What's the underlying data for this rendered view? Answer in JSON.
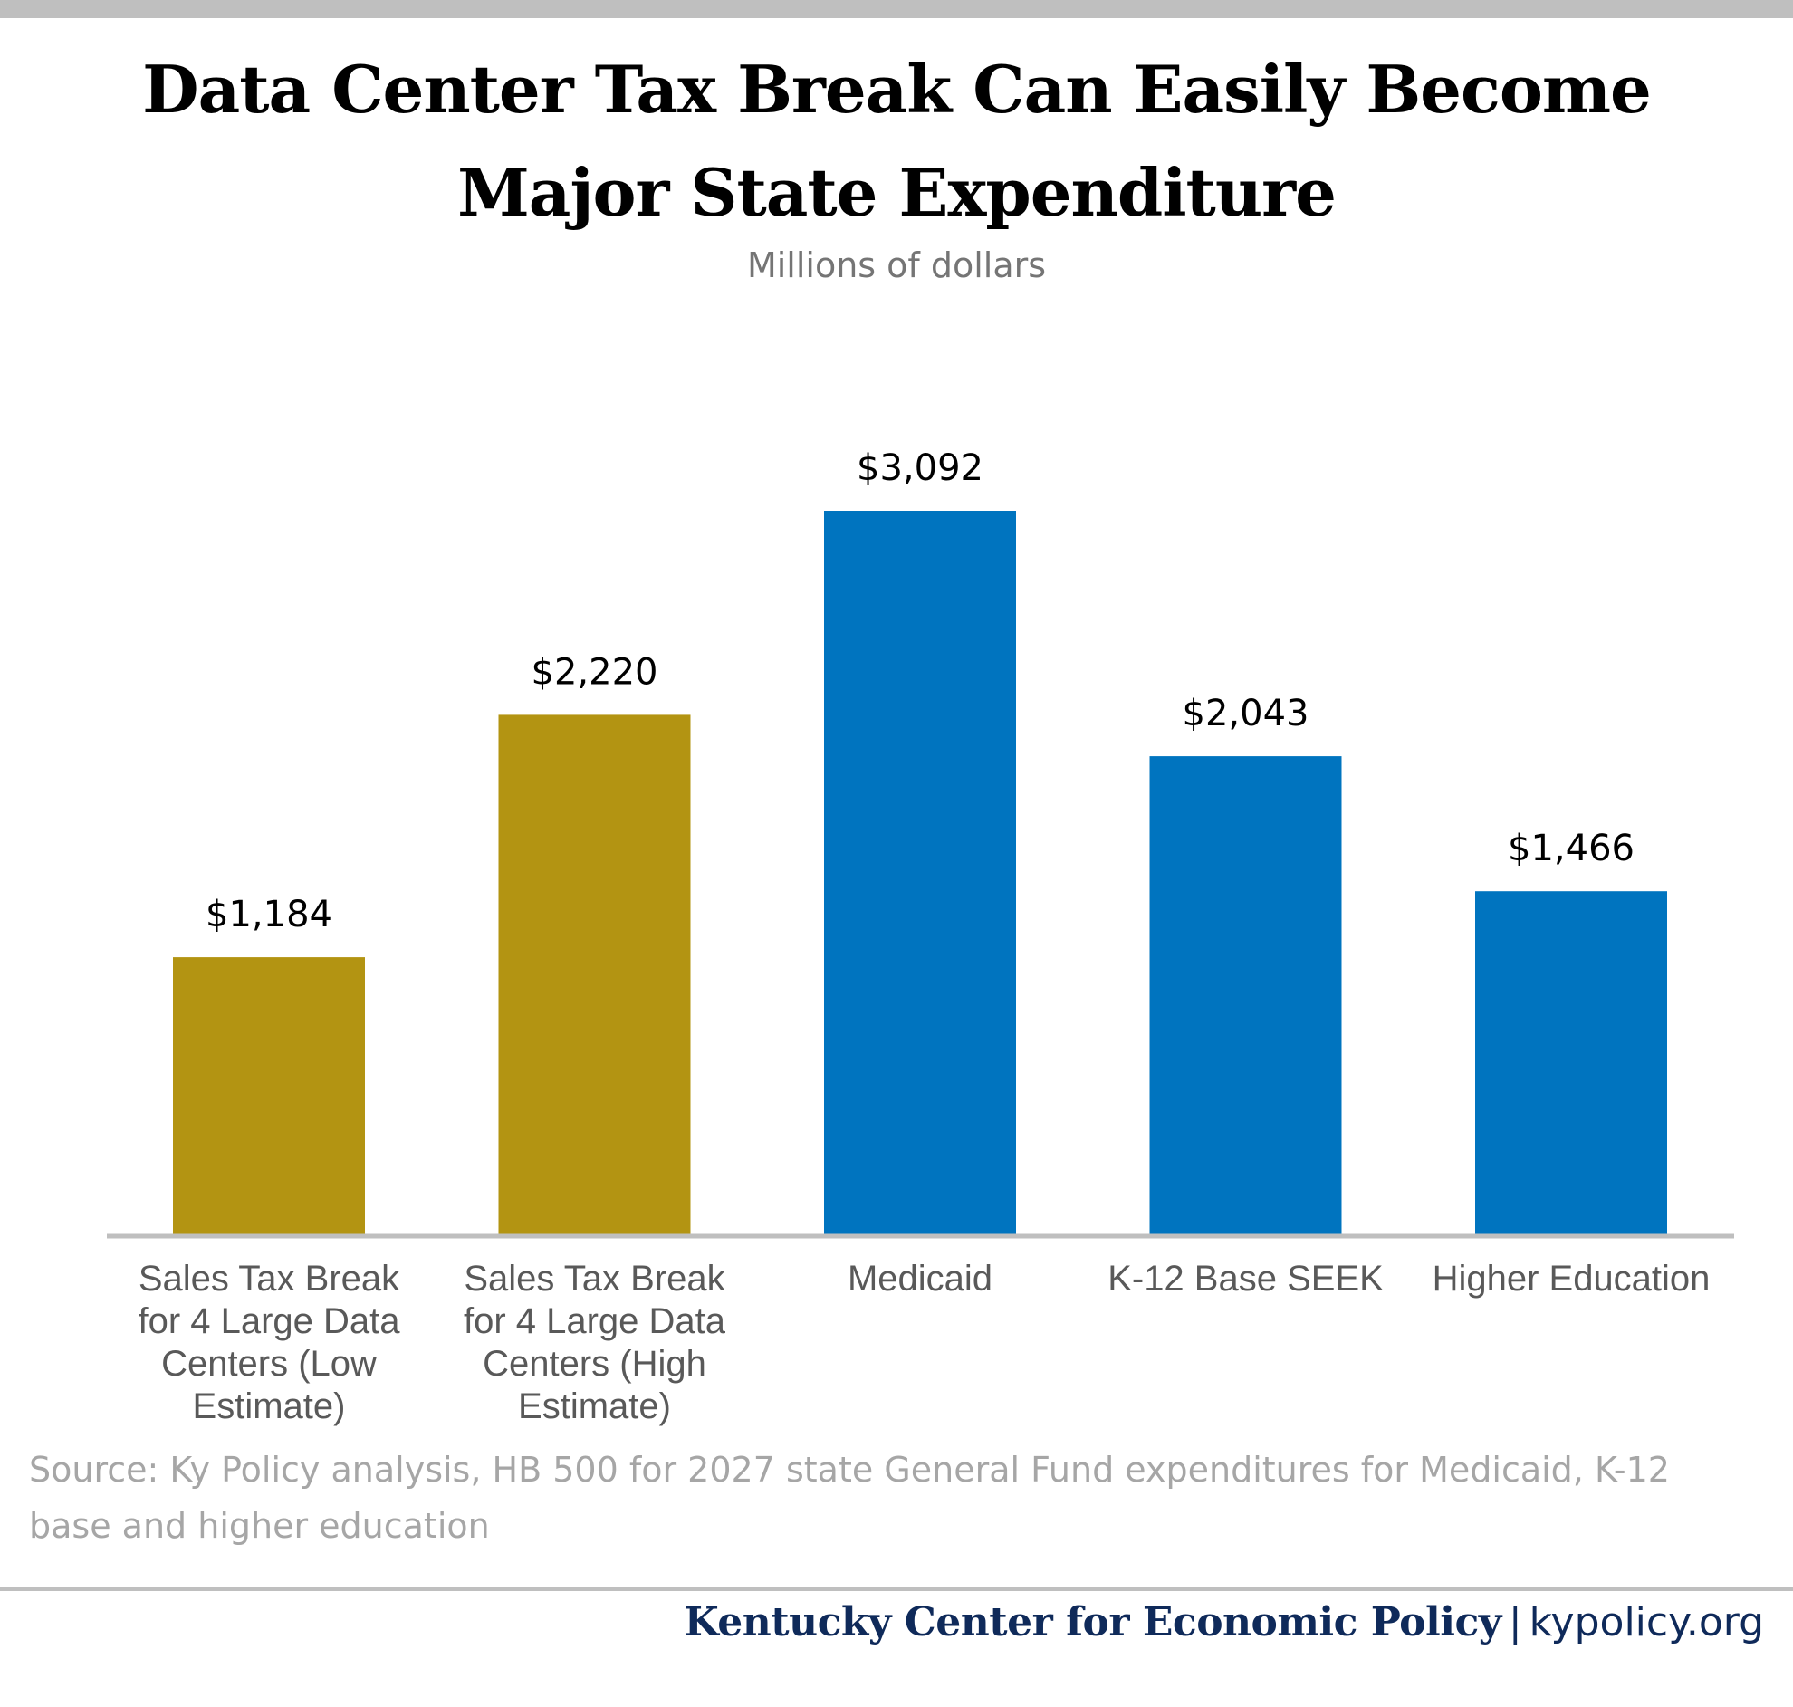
{
  "chart_data": {
    "type": "bar",
    "title_lines": [
      "Data Center Tax Break Can Easily Become",
      "Major State Expenditure"
    ],
    "subtitle": "Millions of dollars",
    "categories": [
      "Sales Tax Break for 4 Large Data Centers (Low Estimate)",
      "Sales Tax Break for 4 Large Data Centers (High Estimate)",
      "Medicaid",
      "K-12 Base SEEK",
      "Higher Education"
    ],
    "category_label_lines": [
      [
        "Sales Tax Break",
        "for 4 Large Data",
        "Centers (Low",
        "Estimate)"
      ],
      [
        "Sales Tax Break",
        "for 4 Large Data",
        "Centers (High",
        "Estimate)"
      ],
      [
        "Medicaid"
      ],
      [
        "K-12 Base SEEK"
      ],
      [
        "Higher Education"
      ]
    ],
    "values": [
      1184,
      2220,
      3092,
      2043,
      1466
    ],
    "value_labels": [
      "$1,184",
      "$2,220",
      "$3,092",
      "$2,043",
      "$1,466"
    ],
    "bar_colors": [
      "#b39412",
      "#b39412",
      "#0074bf",
      "#0074bf",
      "#0074bf"
    ],
    "ylim": [
      0,
      3600
    ],
    "grid": false,
    "legend": "none"
  },
  "source_lines": [
    "Source: Ky Policy analysis, HB 500 for 2027 state General Fund expenditures for Medicaid, K-12",
    "base and higher education"
  ],
  "footer": {
    "org": "Kentucky Center for Economic Policy",
    "separator": "|",
    "site": "kypolicy.org"
  },
  "colors": {
    "tax_break": "#b39412",
    "expenditure": "#0074bf",
    "axis": "#bfbfbf",
    "footer_text": "#0f2a5a"
  }
}
